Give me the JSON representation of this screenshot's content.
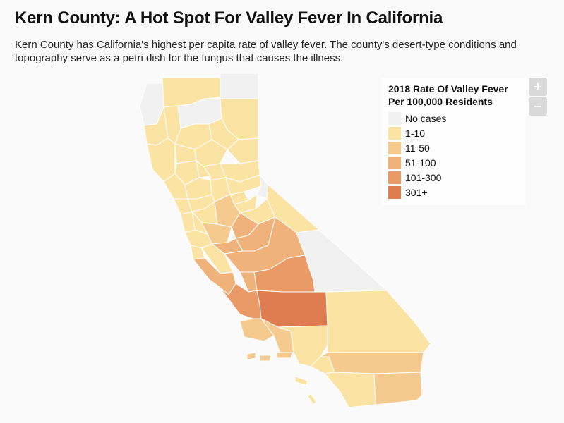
{
  "title": "Kern County: A Hot Spot For Valley Fever In California",
  "subtitle": "Kern County has California's highest per capita rate of valley fever. The county's desert-type conditions and topography serve as a petri dish for the fungus that causes the illness.",
  "legend": {
    "title_line1": "2018 Rate Of Valley Fever",
    "title_line2": "Per 100,000 Residents",
    "items": [
      {
        "label": "No cases",
        "color": "#f1f1f1"
      },
      {
        "label": "1-10",
        "color": "#fbe3a4"
      },
      {
        "label": "11-50",
        "color": "#f4ca8e"
      },
      {
        "label": "51-100",
        "color": "#efb27a"
      },
      {
        "label": "101-300",
        "color": "#e99a66"
      },
      {
        "label": "301+",
        "color": "#e07d50"
      }
    ]
  },
  "zoom": {
    "in_label": "+",
    "out_label": "−"
  },
  "map": {
    "region": "California counties",
    "highlighted_county": "Kern County",
    "highlighted_category": "301+"
  }
}
